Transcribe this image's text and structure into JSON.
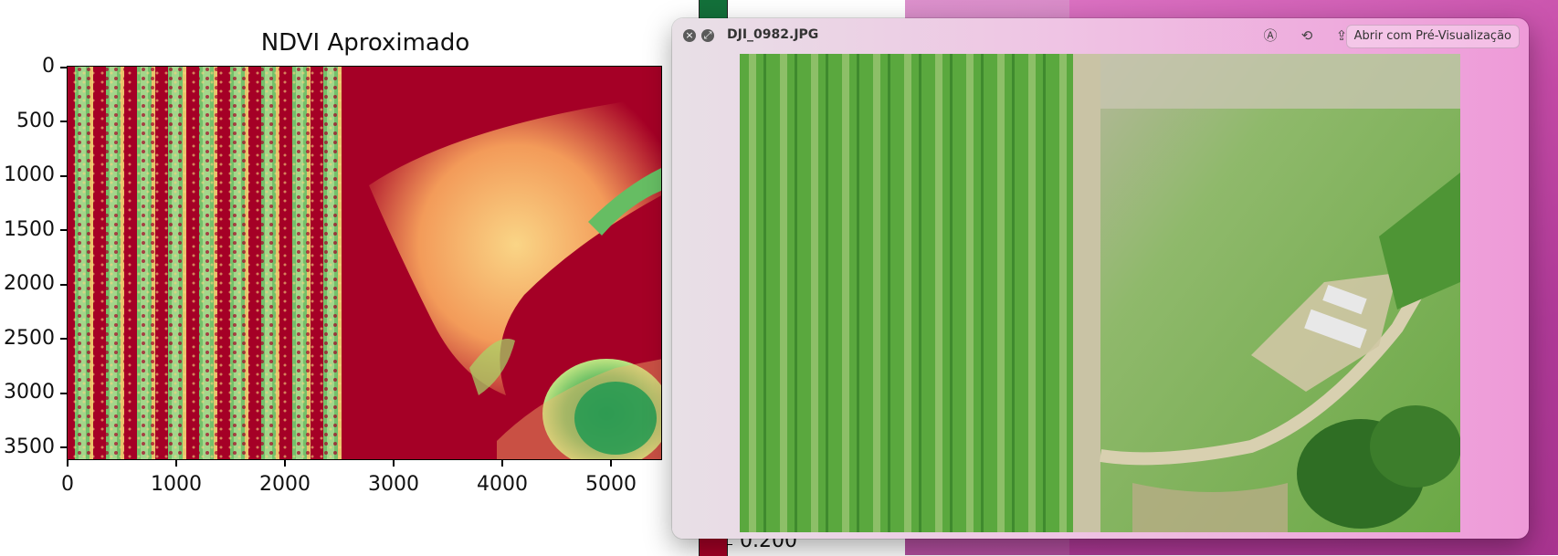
{
  "figure": {
    "title": "NDVI Aproximado",
    "y_ticks": [
      "0",
      "500",
      "1000",
      "1500",
      "2000",
      "2500",
      "3000",
      "3500"
    ],
    "x_ticks": [
      "0",
      "1000",
      "2000",
      "3000",
      "4000",
      "5000"
    ],
    "colorbar_label": "0.200",
    "colormap": "RdYlGn",
    "colors": {
      "low": "#a50026",
      "mid": "#f5e88c",
      "high": "#1a9850"
    }
  },
  "quicklook": {
    "filename": "DJI_0982.JPG",
    "open_button": "Abrir com Pré-Visualização",
    "icons": [
      "close-icon",
      "fullscreen-icon",
      "markup-icon",
      "rotate-icon",
      "share-icon"
    ]
  }
}
